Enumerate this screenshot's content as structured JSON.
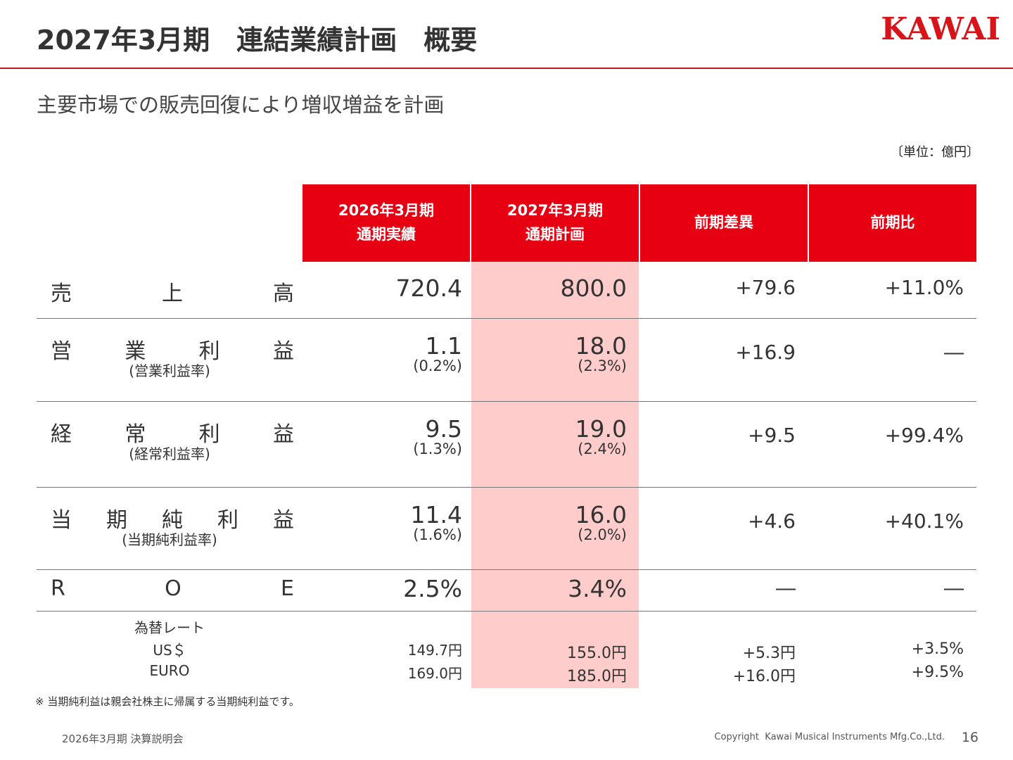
{
  "header": {
    "title": "2027年3月期　連結業績計画　概要",
    "logo": "KAWAI"
  },
  "subtitle": "主要市場での販売回復により増収増益を計画",
  "unit": "〔単位：億円〕",
  "table": {
    "columns": [
      [
        "2026年3月期",
        "通期実績"
      ],
      [
        "2027年3月期",
        "通期計画"
      ],
      [
        "前期差異"
      ],
      [
        "前期比"
      ]
    ],
    "rows": [
      {
        "label": "売上高",
        "values": [
          "720.4",
          "800.0",
          "+79.6",
          "+11.0%"
        ]
      },
      {
        "label": "営業利益",
        "sublabel": "(営業利益率)",
        "values": [
          "1.1",
          "18.0",
          "+16.9",
          "―"
        ],
        "subvalues": [
          "(0.2%)",
          "(2.3%)"
        ]
      },
      {
        "label": "経常利益",
        "sublabel": "(経常利益率)",
        "values": [
          "9.5",
          "19.0",
          "+9.5",
          "+99.4%"
        ],
        "subvalues": [
          "(1.3%)",
          "(2.4%)"
        ]
      },
      {
        "label": "当期純利益",
        "sublabel": "(当期純利益率)",
        "values": [
          "11.4",
          "16.0",
          "+4.6",
          "+40.1%"
        ],
        "subvalues": [
          "(1.6%)",
          "(2.0%)"
        ]
      },
      {
        "label": "R O E",
        "values": [
          "2.5%",
          "3.4%",
          "―",
          "―"
        ]
      }
    ],
    "fx": {
      "label": "為替レート",
      "rows": [
        {
          "label": "US＄",
          "values": [
            "149.7円",
            "155.0円",
            "+5.3円",
            "+3.5%"
          ]
        },
        {
          "label": "EURO",
          "values": [
            "169.0円",
            "185.0円",
            "+16.0円",
            "+9.5%"
          ]
        }
      ]
    }
  },
  "footnote": "※ 当期純利益は親会社株主に帰属する当期純利益です。",
  "footer": {
    "left": "2026年3月期 決算説明会",
    "copyright": "Copyright  Kawai Musical Instruments Mfg.Co.,Ltd.",
    "page": "16"
  }
}
